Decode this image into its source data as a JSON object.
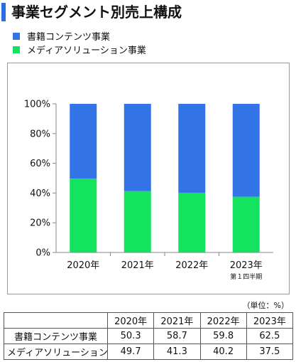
{
  "title": "事業セグメント別売上構成",
  "unit_note": "（単位：%）",
  "colors": {
    "title_accent": "#2a6fe0",
    "books": "#3273e6",
    "media": "#14e35f"
  },
  "chart_data": {
    "type": "bar",
    "stacked": true,
    "categories": [
      "2020年",
      "2021年",
      "2022年",
      "2023年"
    ],
    "category_sublabels": [
      "",
      "",
      "",
      "第１四半期"
    ],
    "series": [
      {
        "name": "メディアソリューション事業",
        "values": [
          49.7,
          41.3,
          40.2,
          37.5
        ],
        "color": "#14e35f"
      },
      {
        "name": "書籍コンテンツ事業",
        "values": [
          50.3,
          58.7,
          59.8,
          62.5
        ],
        "color": "#3273e6"
      }
    ],
    "legend": [
      "書籍コンテンツ事業",
      "メディアソリューション事業"
    ],
    "y_ticks": [
      "0%",
      "20%",
      "40%",
      "60%",
      "80%",
      "100%"
    ],
    "ylim": [
      0,
      100
    ],
    "legend_position": "top-left",
    "grid": false
  },
  "table": {
    "corner": "",
    "headers": [
      "2020年",
      "2021年",
      "2022年",
      "2023年"
    ],
    "rows": [
      {
        "label": "書籍コンテンツ事業",
        "values": [
          "50.3",
          "58.7",
          "59.8",
          "62.5"
        ]
      },
      {
        "label": "メディアソリューション事業",
        "values": [
          "49.7",
          "41.3",
          "40.2",
          "37.5"
        ]
      }
    ]
  }
}
